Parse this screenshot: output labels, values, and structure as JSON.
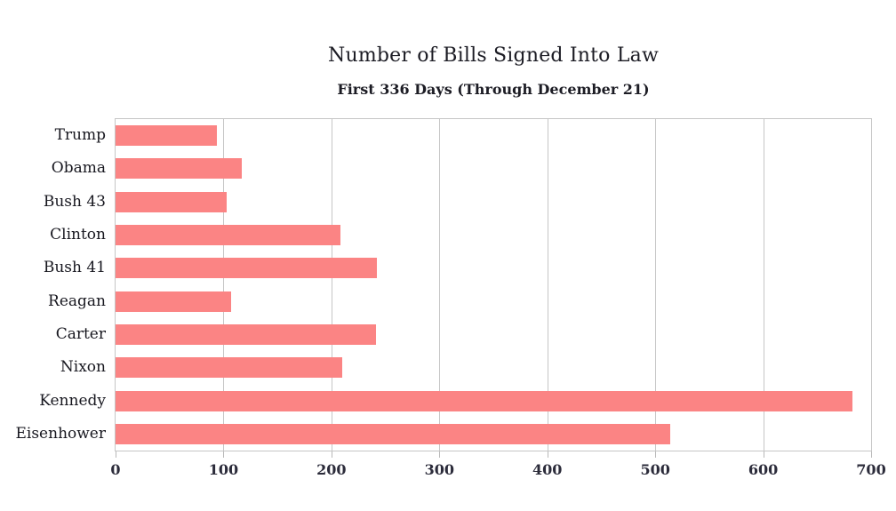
{
  "header": {
    "title": "Number of Bills Signed Into Law",
    "subtitle": "First 336 Days (Through December 21)"
  },
  "colors": {
    "bar_fill": "#fb8484",
    "grid_line": "#c6c6c6",
    "title_text": "#1c1c24",
    "tick_text": "#2b2b3a"
  },
  "chart_data": {
    "type": "bar",
    "orientation": "horizontal",
    "title": "Number of Bills Signed Into Law",
    "subtitle": "First 336 Days (Through December 21)",
    "categories": [
      "Trump",
      "Obama",
      "Bush 43",
      "Clinton",
      "Bush 41",
      "Reagan",
      "Carter",
      "Nixon",
      "Kennedy",
      "Eisenhower"
    ],
    "values": [
      94,
      117,
      103,
      208,
      242,
      107,
      241,
      210,
      683,
      514
    ],
    "xlabel": "",
    "ylabel": "",
    "xlim": [
      0,
      700
    ],
    "xticks": [
      0,
      100,
      200,
      300,
      400,
      500,
      600,
      700
    ],
    "grid": true,
    "legend": false,
    "bar_color": "#fb8484"
  }
}
